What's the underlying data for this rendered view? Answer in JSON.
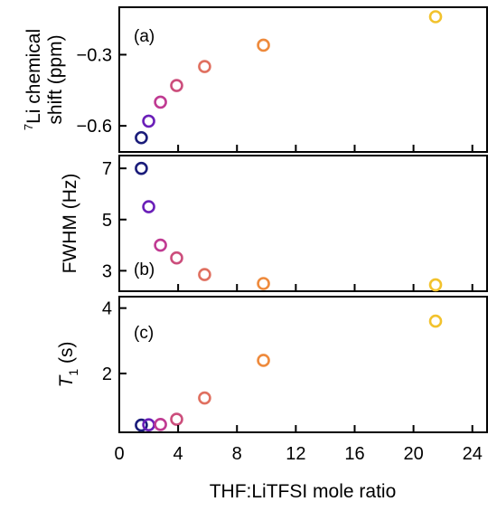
{
  "figure": {
    "xlabel": "THF:LiTFSI mole ratio",
    "xlim": [
      0,
      25
    ],
    "xticks": [
      "0",
      "4",
      "8",
      "12",
      "16",
      "20",
      "24"
    ],
    "point_colors": [
      "#1a1c7a",
      "#6a1fb8",
      "#c03a92",
      "#cc4e7c",
      "#e07060",
      "#ee8a3c",
      "#f2c22c"
    ]
  },
  "chart_data": [
    {
      "type": "scatter",
      "panel_label": "(a)",
      "ylabel_sup": "7",
      "ylabel_line1": "Li chemical",
      "ylabel_line2": "shift (ppm)",
      "ylim": [
        -0.71,
        -0.1
      ],
      "yticks": [
        "−0.3",
        "−0.6"
      ],
      "ytick_values": [
        -0.3,
        -0.6
      ],
      "x": [
        1.5,
        2.0,
        2.8,
        3.9,
        5.8,
        9.8,
        21.5
      ],
      "y": [
        -0.65,
        -0.58,
        -0.5,
        -0.43,
        -0.35,
        -0.26,
        -0.14
      ]
    },
    {
      "type": "scatter",
      "panel_label": "(b)",
      "ylabel": "FWHM (Hz)",
      "ylim": [
        2.2,
        7.5
      ],
      "yticks": [
        "7",
        "5",
        "3"
      ],
      "ytick_values": [
        7,
        5,
        3
      ],
      "x": [
        1.5,
        2.0,
        2.8,
        3.9,
        5.8,
        9.8,
        21.5
      ],
      "y": [
        7.0,
        5.5,
        4.0,
        3.5,
        2.85,
        2.5,
        2.45
      ]
    },
    {
      "type": "scatter",
      "panel_label": "(c)",
      "ylabel_main": "T",
      "ylabel_sub": "1",
      "ylabel_unit": " (s)",
      "ylim": [
        0.2,
        4.35
      ],
      "yticks": [
        "4",
        "2"
      ],
      "ytick_values": [
        4,
        2
      ],
      "x": [
        1.5,
        2.0,
        2.8,
        3.9,
        5.8,
        9.8,
        21.5
      ],
      "y": [
        0.42,
        0.43,
        0.44,
        0.6,
        1.25,
        2.4,
        3.6
      ]
    }
  ]
}
